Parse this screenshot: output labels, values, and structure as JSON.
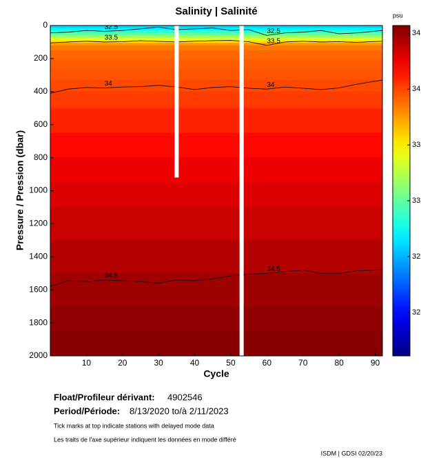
{
  "chart_data": {
    "type": "heatmap",
    "title": "Salinity | Salinité",
    "x_label": "Cycle",
    "y_label": "Pressure / Pression (dbar)",
    "colorbar_label": "psu",
    "xlim": [
      0,
      92
    ],
    "xticks": [
      10,
      20,
      30,
      40,
      50,
      60,
      70,
      80,
      90
    ],
    "ylim": [
      2000,
      0
    ],
    "yticks": [
      0,
      200,
      400,
      600,
      800,
      1000,
      1200,
      1400,
      1600,
      1800,
      2000
    ],
    "clim": [
      31.61,
      34.57
    ],
    "cticks": [
      32,
      32.5,
      33,
      33.5,
      34,
      34.5
    ],
    "y": [
      0,
      15,
      30,
      45,
      60,
      75,
      90,
      105,
      120,
      150,
      200,
      260,
      330,
      400,
      500,
      650,
      800,
      950,
      1100,
      1300,
      1500,
      1700,
      1850,
      2000
    ],
    "values": [
      32.6,
      32.7,
      32.85,
      33.0,
      33.2,
      33.4,
      33.55,
      33.75,
      33.85,
      33.9,
      33.93,
      33.96,
      33.99,
      34.03,
      34.1,
      34.18,
      34.25,
      34.3,
      34.36,
      34.42,
      34.48,
      34.52,
      34.55,
      34.57
    ],
    "gaps": [
      {
        "cycle": 35,
        "max_pressure": 920
      },
      {
        "cycle": 53,
        "max_pressure": 2000
      }
    ],
    "contours": [
      {
        "level": 34,
        "x": [
          0,
          5,
          10,
          15,
          20,
          25,
          30,
          35,
          40,
          45,
          50,
          55,
          60,
          65,
          70,
          75,
          80,
          85,
          92
        ],
        "y": [
          410,
          385,
          375,
          378,
          372,
          370,
          362,
          372,
          388,
          375,
          370,
          380,
          385,
          372,
          380,
          388,
          378,
          355,
          330
        ]
      },
      {
        "level": 34.5,
        "x": [
          0,
          5,
          10,
          15,
          20,
          25,
          30,
          35,
          40,
          45,
          50,
          55,
          60,
          65,
          70,
          75,
          80,
          85,
          92
        ],
        "y": [
          1580,
          1545,
          1550,
          1540,
          1545,
          1550,
          1560,
          1540,
          1545,
          1535,
          1515,
          1505,
          1500,
          1490,
          1480,
          1500,
          1500,
          1485,
          1480
        ]
      },
      {
        "level": 33.5,
        "x": [
          0,
          5,
          10,
          15,
          20,
          25,
          30,
          35,
          40,
          45,
          50,
          55,
          60,
          65,
          70,
          75,
          80,
          85,
          92
        ],
        "y": [
          105,
          100,
          95,
          100,
          98,
          92,
          96,
          100,
          95,
          92,
          90,
          98,
          120,
          100,
          95,
          100,
          98,
          102,
          95
        ]
      },
      {
        "level": 32.5,
        "x": [
          0,
          5,
          10,
          15,
          20,
          25,
          30,
          35,
          40,
          45,
          50,
          55,
          60,
          65,
          70,
          75,
          80,
          85,
          92
        ],
        "y": [
          45,
          40,
          30,
          35,
          30,
          20,
          10,
          25,
          20,
          15,
          30,
          25,
          60,
          45,
          40,
          30,
          50,
          45,
          30
        ]
      }
    ],
    "float_label": "Float/Profileur dérivant:",
    "float_id": "4902546",
    "period_label": "Period/Période:",
    "period": "8/13/2020  to/à  2/11/2023",
    "note_en": "Tick marks at top indicate stations with delayed mode data",
    "note_fr": "Les traits de l'axe supérieur indiquent les données en mode différé",
    "footer": "ISDM | GDSI  02/20/23"
  }
}
